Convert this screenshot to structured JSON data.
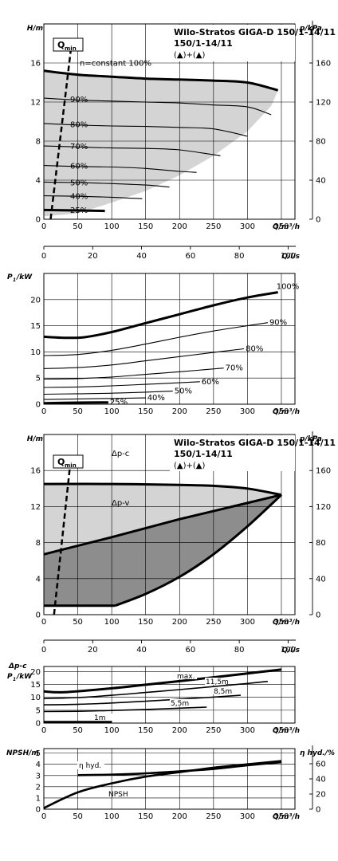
{
  "document": {
    "product_name": "Wilo-Stratos GIGA-D",
    "model": "150/1-14/11",
    "mode_symbols": "(▲)+(▲)"
  },
  "chart_data": [
    {
      "id": "hq-constant",
      "type": "line",
      "title": "Wilo-Stratos GIGA-D 150/1-14/11",
      "xlabel": "Q/m³/h",
      "ylabel": "H/m",
      "y2label": "p/kPa",
      "xlim": [
        0,
        370
      ],
      "ylim": [
        0,
        20
      ],
      "y2lim": [
        0,
        200
      ],
      "xticks": [
        0,
        50,
        100,
        150,
        200,
        250,
        300,
        350
      ],
      "yticks": [
        0,
        4,
        8,
        12,
        16
      ],
      "y2ticks": [
        0,
        40,
        80,
        120,
        160
      ],
      "qmin_label": "Q",
      "qmin_sub": "min",
      "qmin_line": {
        "x": [
          10,
          40
        ],
        "y": [
          0,
          17.5
        ]
      },
      "envelope_fill": "#d4d4d4",
      "envelope": {
        "x": [
          0,
          50,
          100,
          150,
          200,
          250,
          300,
          345,
          335,
          300,
          250,
          200,
          150,
          100,
          50,
          0
        ],
        "y": [
          15.2,
          14.8,
          14.6,
          14.4,
          14.3,
          14.2,
          14.0,
          13.2,
          11.6,
          9.0,
          6.5,
          4.5,
          2.9,
          1.7,
          0.6,
          0.3
        ]
      },
      "series": [
        {
          "name": "n=constant 100%",
          "label": "n=constant 100%",
          "bold": true,
          "x": [
            0,
            50,
            100,
            150,
            200,
            250,
            300,
            345
          ],
          "y": [
            15.2,
            14.8,
            14.6,
            14.4,
            14.3,
            14.2,
            14.0,
            13.2
          ]
        },
        {
          "name": "90%",
          "label": "90%",
          "bold": false,
          "x": [
            0,
            50,
            100,
            150,
            200,
            250,
            300,
            335
          ],
          "y": [
            12.4,
            12.2,
            12.1,
            12.0,
            11.9,
            11.7,
            11.5,
            10.7
          ]
        },
        {
          "name": "80%",
          "label": "80%",
          "bold": false,
          "x": [
            0,
            50,
            100,
            150,
            200,
            250,
            300
          ],
          "y": [
            9.8,
            9.65,
            9.55,
            9.5,
            9.4,
            9.25,
            8.5
          ]
        },
        {
          "name": "70%",
          "label": "70%",
          "bold": false,
          "x": [
            0,
            50,
            100,
            150,
            200,
            260
          ],
          "y": [
            7.5,
            7.4,
            7.3,
            7.25,
            7.1,
            6.5
          ]
        },
        {
          "name": "60%",
          "label": "60%",
          "bold": false,
          "x": [
            0,
            50,
            100,
            150,
            200,
            225
          ],
          "y": [
            5.5,
            5.4,
            5.35,
            5.2,
            4.9,
            4.8
          ]
        },
        {
          "name": "50%",
          "label": "50%",
          "bold": false,
          "x": [
            0,
            50,
            100,
            150,
            185
          ],
          "y": [
            3.8,
            3.75,
            3.65,
            3.5,
            3.3
          ]
        },
        {
          "name": "40%",
          "label": "40%",
          "bold": false,
          "x": [
            0,
            50,
            100,
            145
          ],
          "y": [
            2.4,
            2.35,
            2.25,
            2.1
          ]
        },
        {
          "name": "25%",
          "label": "25%",
          "bold": true,
          "x": [
            0,
            50,
            90
          ],
          "y": [
            0.95,
            0.9,
            0.85
          ]
        }
      ]
    },
    {
      "id": "q-ls-axis-1",
      "type": "axis",
      "xlabel": "Q/l/s",
      "xlim": [
        0,
        102.8
      ],
      "xticks": [
        0,
        20,
        40,
        60,
        80,
        100
      ]
    },
    {
      "id": "p1-constant",
      "type": "line",
      "xlabel": "Q/m³/h",
      "ylabel_main": "P",
      "ylabel_sub": "1",
      "ylabel_unit": "/kW",
      "xlim": [
        0,
        370
      ],
      "ylim": [
        0,
        25
      ],
      "xticks": [
        0,
        50,
        100,
        150,
        200,
        250,
        300,
        350
      ],
      "yticks": [
        0,
        5,
        10,
        15,
        20
      ],
      "series": [
        {
          "name": "100%",
          "label": "100%",
          "bold": true,
          "x": [
            0,
            30,
            60,
            100,
            150,
            200,
            250,
            300,
            345
          ],
          "y": [
            12.9,
            12.7,
            12.8,
            13.8,
            15.5,
            17.2,
            18.9,
            20.4,
            21.4
          ]
        },
        {
          "name": "90%",
          "label": "90%",
          "bold": false,
          "x": [
            0,
            50,
            100,
            150,
            200,
            250,
            300,
            330
          ],
          "y": [
            9.3,
            9.5,
            10.3,
            11.5,
            12.8,
            14.0,
            15.0,
            15.6
          ]
        },
        {
          "name": "80%",
          "label": "80%",
          "bold": false,
          "x": [
            0,
            50,
            100,
            150,
            200,
            250,
            295
          ],
          "y": [
            6.8,
            7.0,
            7.5,
            8.3,
            9.1,
            9.9,
            10.6
          ]
        },
        {
          "name": "70%",
          "label": "70%",
          "bold": false,
          "x": [
            0,
            50,
            100,
            150,
            200,
            265
          ],
          "y": [
            4.8,
            4.9,
            5.2,
            5.7,
            6.2,
            6.9
          ]
        },
        {
          "name": "60%",
          "label": "60%",
          "bold": false,
          "x": [
            0,
            50,
            100,
            150,
            200,
            230
          ],
          "y": [
            3.2,
            3.3,
            3.5,
            3.8,
            4.1,
            4.3
          ]
        },
        {
          "name": "50%",
          "label": "50%",
          "bold": false,
          "x": [
            0,
            50,
            100,
            150,
            190
          ],
          "y": [
            1.9,
            2.0,
            2.1,
            2.3,
            2.5
          ]
        },
        {
          "name": "40%",
          "label": "40%",
          "bold": false,
          "x": [
            0,
            50,
            100,
            150
          ],
          "y": [
            0.9,
            1.0,
            1.1,
            1.2
          ]
        },
        {
          "name": "25%",
          "label": "25%",
          "bold": true,
          "x": [
            0,
            50,
            95
          ],
          "y": [
            0.2,
            0.3,
            0.35
          ]
        }
      ]
    },
    {
      "id": "hq-dp",
      "type": "area",
      "title": "Wilo-Stratos GIGA-D 150/1-14/11",
      "xlabel": "Q/m³/h",
      "ylabel": "H/m",
      "y2label": "p/kPa",
      "xlim": [
        0,
        370
      ],
      "ylim": [
        0,
        20
      ],
      "y2lim": [
        0,
        200
      ],
      "xticks": [
        0,
        50,
        100,
        150,
        200,
        250,
        300,
        350
      ],
      "yticks": [
        0,
        4,
        8,
        12,
        16
      ],
      "y2ticks": [
        0,
        40,
        80,
        120,
        160
      ],
      "qmin_label": "Q",
      "qmin_sub": "min",
      "qmin_line": {
        "x": [
          15,
          40
        ],
        "y": [
          0,
          17.5
        ]
      },
      "dp_c_label": "Δp-c",
      "dp_v_label": "Δp-v",
      "light_fill": "#d4d4d4",
      "dark_fill": "#8d8d8d",
      "dp_c": {
        "x": [
          0,
          100,
          200,
          250,
          300,
          350
        ],
        "y": [
          14.5,
          14.5,
          14.4,
          14.3,
          14.0,
          13.3
        ]
      },
      "dp_v": {
        "x": [
          0,
          100,
          200,
          300,
          350
        ],
        "y": [
          6.7,
          8.6,
          10.6,
          12.4,
          13.3
        ]
      },
      "min_curve": {
        "x": [
          0,
          105,
          150,
          200,
          250,
          300,
          350
        ],
        "y": [
          1.0,
          1.0,
          2.3,
          4.2,
          6.7,
          9.8,
          13.3
        ]
      }
    },
    {
      "id": "q-ls-axis-2",
      "type": "axis",
      "xlabel": "Q/l/s",
      "xlim": [
        0,
        102.8
      ],
      "xticks": [
        0,
        20,
        40,
        60,
        80,
        100
      ]
    },
    {
      "id": "p1-dp",
      "type": "line",
      "xlabel": "Q/m³/h",
      "ylabel_top": "Δp-c",
      "ylabel_main": "P",
      "ylabel_sub": "1",
      "ylabel_unit": "/kW",
      "xlim": [
        0,
        370
      ],
      "ylim": [
        0,
        22
      ],
      "xticks": [
        0,
        50,
        100,
        150,
        200,
        250,
        300,
        350
      ],
      "yticks": [
        0,
        5,
        10,
        15,
        20
      ],
      "series": [
        {
          "name": "max.",
          "label": "max.",
          "bold": true,
          "x": [
            0,
            30,
            100,
            150,
            200,
            250,
            300,
            350
          ],
          "y": [
            12.3,
            12.0,
            13.5,
            14.9,
            16.3,
            17.8,
            19.3,
            20.8
          ]
        },
        {
          "name": "11,5m",
          "label": "11,5m",
          "bold": false,
          "x": [
            0,
            50,
            100,
            150,
            200,
            250,
            300,
            330
          ],
          "y": [
            9.5,
            9.9,
            10.8,
            11.9,
            13.0,
            14.2,
            15.4,
            16.2
          ]
        },
        {
          "name": "8,5m",
          "label": "8,5m",
          "bold": false,
          "x": [
            0,
            50,
            100,
            150,
            200,
            250,
            290
          ],
          "y": [
            7.1,
            7.3,
            7.8,
            8.5,
            9.3,
            10.1,
            10.8
          ]
        },
        {
          "name": "5,5m",
          "label": "5,5m",
          "bold": false,
          "x": [
            0,
            50,
            100,
            150,
            200,
            240
          ],
          "y": [
            4.5,
            4.6,
            4.9,
            5.3,
            5.8,
            6.2
          ]
        },
        {
          "name": "1m",
          "label": "1m",
          "bold": true,
          "x": [
            0,
            50,
            100
          ],
          "y": [
            0.4,
            0.4,
            0.4
          ]
        }
      ]
    },
    {
      "id": "npsh-eta",
      "type": "line",
      "xlabel": "Q/m³/h",
      "ylabel": "NPSH/m",
      "y2label": "η hyd./%",
      "xlim": [
        0,
        370
      ],
      "ylim": [
        0,
        5.4
      ],
      "y2lim": [
        0,
        80
      ],
      "xticks": [
        0,
        50,
        100,
        150,
        200,
        250,
        300,
        350
      ],
      "yticks": [
        0,
        1,
        2,
        3,
        4,
        5
      ],
      "y2ticks": [
        0,
        20,
        40,
        60
      ],
      "series": [
        {
          "name": "NPSH",
          "label": "NPSH",
          "bold": true,
          "axis": "left",
          "x": [
            0,
            50,
            100,
            150,
            200,
            250,
            300,
            350
          ],
          "y": [
            0.1,
            1.5,
            2.3,
            2.9,
            3.3,
            3.7,
            4.0,
            4.3
          ]
        },
        {
          "name": "η hyd.",
          "label": "η hyd.",
          "bold": true,
          "axis": "right",
          "x": [
            50,
            100,
            150,
            200,
            250,
            300,
            350
          ],
          "y": [
            45,
            45.6,
            47.3,
            50,
            53,
            58,
            62
          ]
        }
      ]
    }
  ]
}
